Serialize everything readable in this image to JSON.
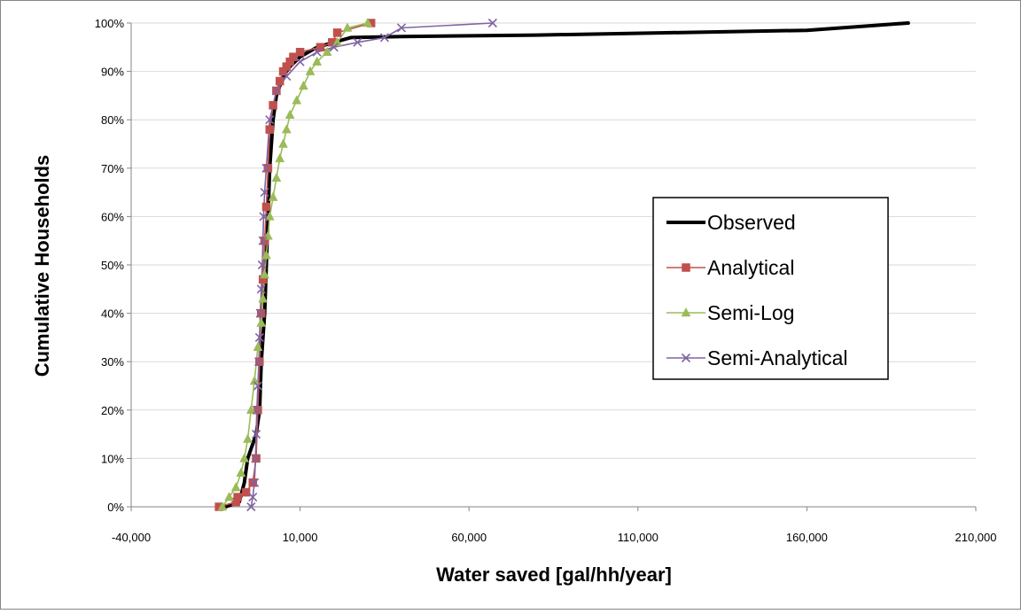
{
  "chart_data": {
    "type": "line",
    "title": "",
    "xlabel": "Water saved [gal/hh/year]",
    "ylabel": "Cumulative Households",
    "xlim": [
      -40000,
      210000
    ],
    "ylim": [
      0,
      1
    ],
    "x_ticks": [
      -40000,
      10000,
      60000,
      110000,
      160000,
      210000
    ],
    "x_tick_labels": [
      "-40,000",
      "10,000",
      "60,000",
      "110,000",
      "160,000",
      "210,000"
    ],
    "y_ticks": [
      0,
      0.1,
      0.2,
      0.3,
      0.4,
      0.5,
      0.6,
      0.7,
      0.8,
      0.9,
      1.0
    ],
    "y_tick_labels": [
      "0%",
      "10%",
      "20%",
      "30%",
      "40%",
      "50%",
      "60%",
      "70%",
      "80%",
      "90%",
      "100%"
    ],
    "grid": "horizontal",
    "legend_placement": "right",
    "series": [
      {
        "name": "Observed",
        "color": "#000000",
        "marker": "none",
        "x": [
          -12000,
          -8000,
          -6500,
          -5500,
          -3000,
          -2000,
          -1500,
          -500,
          0,
          500,
          1000,
          2000,
          3000,
          4000,
          5000,
          7000,
          10000,
          15000,
          20000,
          25000,
          40000,
          80000,
          120000,
          160000,
          170000,
          180000,
          190000
        ],
        "y": [
          0,
          0.01,
          0.05,
          0.1,
          0.15,
          0.2,
          0.3,
          0.4,
          0.5,
          0.6,
          0.7,
          0.8,
          0.85,
          0.87,
          0.89,
          0.91,
          0.93,
          0.95,
          0.96,
          0.97,
          0.972,
          0.975,
          0.98,
          0.985,
          0.99,
          0.995,
          1.0
        ]
      },
      {
        "name": "Analytical",
        "color": "#c0504d",
        "marker": "square",
        "x": [
          -14000,
          -9000,
          -8500,
          -6000,
          -4000,
          -3000,
          -2500,
          -2000,
          -1500,
          -1000,
          -500,
          0,
          500,
          1000,
          2000,
          3000,
          4000,
          5000,
          6000,
          7000,
          8000,
          10000,
          16000,
          19500,
          21000,
          31000
        ],
        "y": [
          0,
          0.01,
          0.02,
          0.03,
          0.05,
          0.1,
          0.2,
          0.3,
          0.4,
          0.47,
          0.55,
          0.62,
          0.7,
          0.78,
          0.83,
          0.86,
          0.88,
          0.9,
          0.91,
          0.92,
          0.93,
          0.94,
          0.95,
          0.96,
          0.98,
          1.0
        ]
      },
      {
        "name": "Semi-Log",
        "color": "#9bbb59",
        "marker": "triangle",
        "x": [
          -13000,
          -11000,
          -9000,
          -7500,
          -6500,
          -5500,
          -4500,
          -3500,
          -2500,
          -1500,
          -1000,
          -500,
          0,
          500,
          1000,
          2000,
          3000,
          4000,
          5000,
          6000,
          7000,
          9000,
          11000,
          13000,
          15000,
          18000,
          21000,
          24000,
          30000
        ],
        "y": [
          0,
          0.02,
          0.04,
          0.07,
          0.1,
          0.14,
          0.2,
          0.26,
          0.33,
          0.38,
          0.43,
          0.48,
          0.52,
          0.56,
          0.6,
          0.64,
          0.68,
          0.72,
          0.75,
          0.78,
          0.81,
          0.84,
          0.87,
          0.9,
          0.92,
          0.94,
          0.96,
          0.99,
          1.0
        ]
      },
      {
        "name": "Semi-Analytical",
        "color": "#8064a2",
        "marker": "x",
        "x": [
          -4500,
          -4000,
          -3500,
          -3200,
          -3000,
          -2800,
          -2500,
          -2200,
          -2000,
          -1800,
          -1500,
          -1200,
          -1000,
          -800,
          -500,
          0,
          1000,
          3000,
          6000,
          10000,
          15000,
          20000,
          27000,
          35000,
          40000,
          67000
        ],
        "y": [
          0,
          0.02,
          0.05,
          0.1,
          0.15,
          0.2,
          0.25,
          0.3,
          0.35,
          0.4,
          0.45,
          0.5,
          0.55,
          0.6,
          0.65,
          0.7,
          0.8,
          0.86,
          0.89,
          0.92,
          0.94,
          0.95,
          0.96,
          0.97,
          0.99,
          1.0
        ]
      }
    ]
  }
}
